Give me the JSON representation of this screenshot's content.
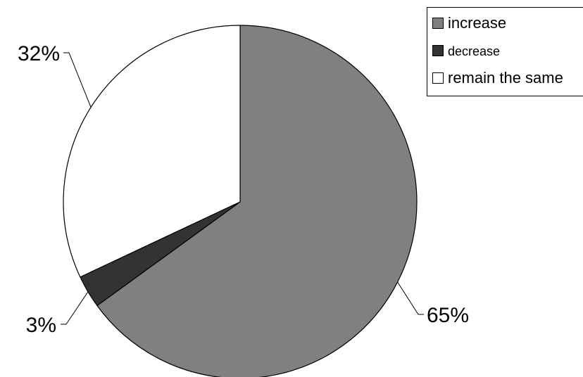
{
  "chart_data": {
    "type": "pie",
    "title": "",
    "categories": [
      "increase",
      "decrease",
      "remain the same"
    ],
    "values": [
      65,
      3,
      32
    ],
    "data_labels": [
      "65%",
      "3%",
      "32%"
    ],
    "colors": [
      "#808080",
      "#333333",
      "#ffffff"
    ],
    "start_angle_deg": 0,
    "direction": "clockwise",
    "legend": {
      "placement": "top-right",
      "entries": [
        "increase",
        "decrease",
        "remain the same"
      ]
    }
  }
}
